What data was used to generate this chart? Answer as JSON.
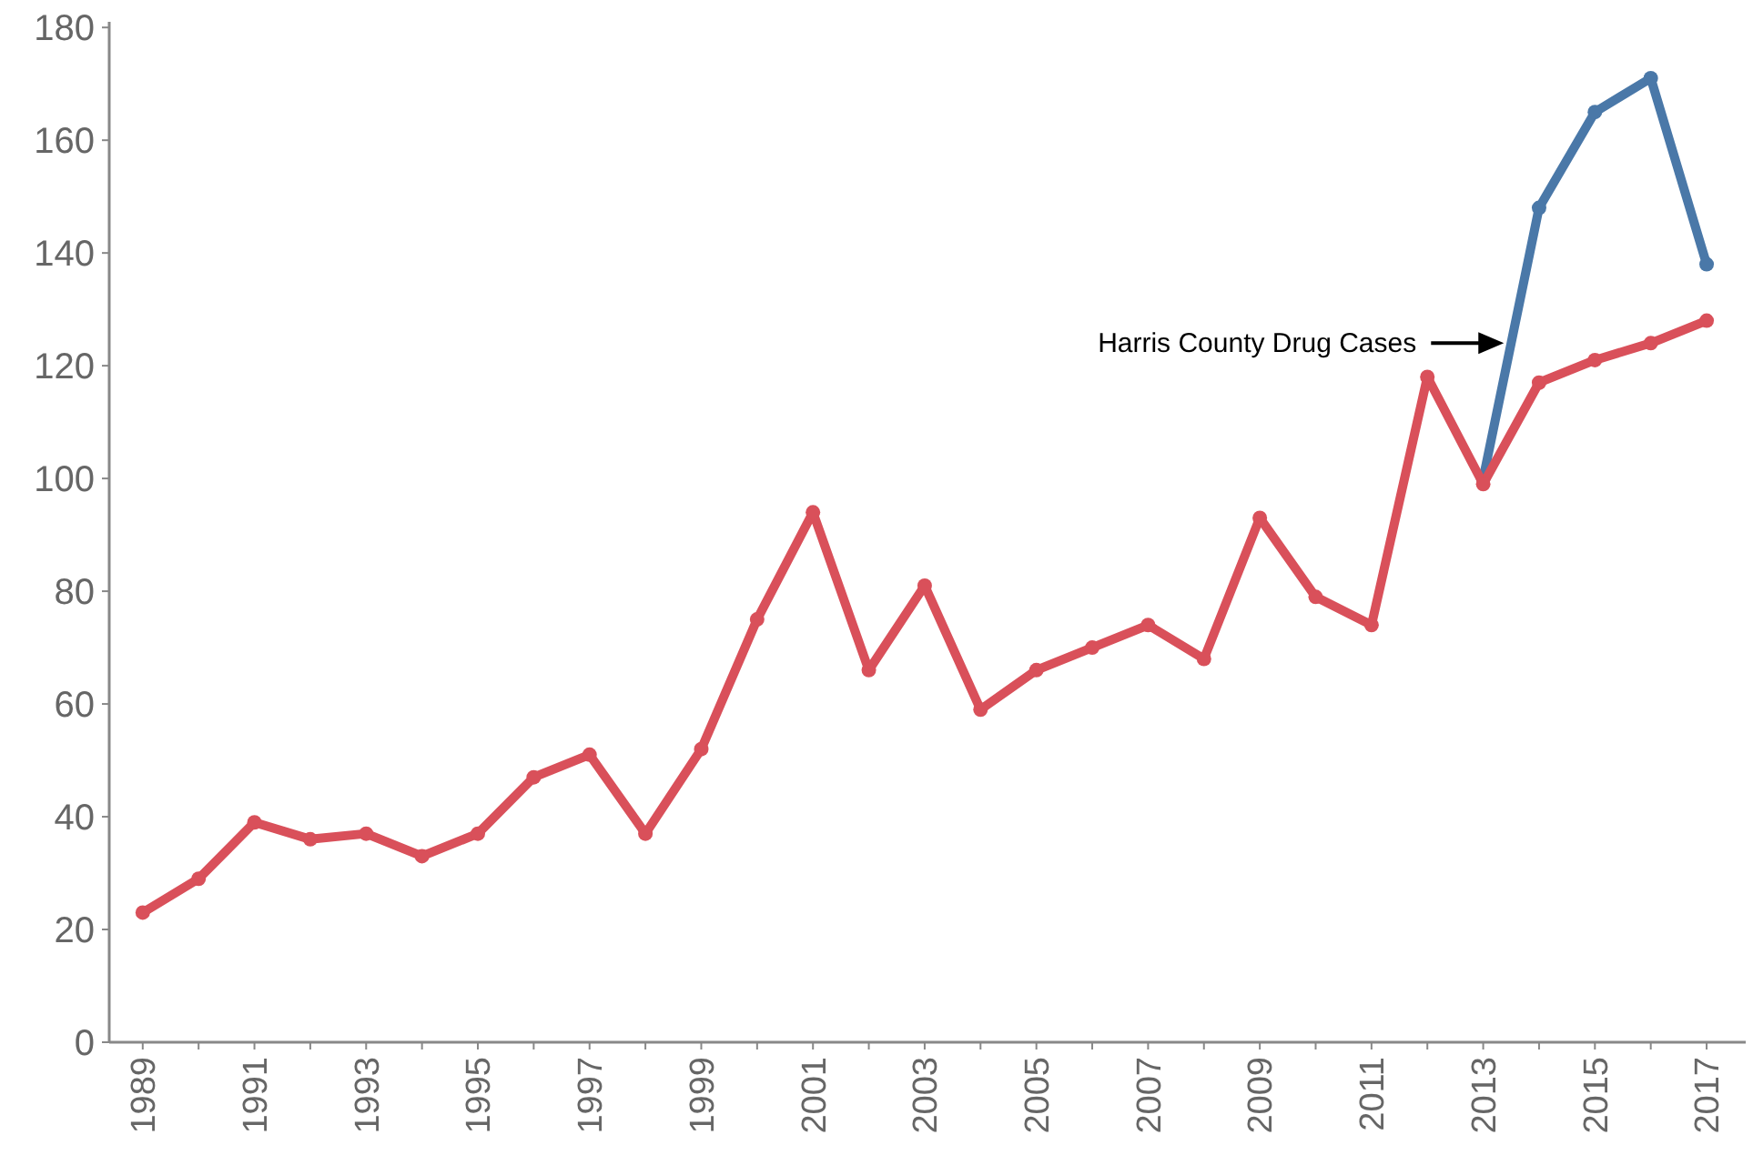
{
  "chart_data": {
    "type": "line",
    "x": [
      1989,
      1990,
      1991,
      1992,
      1993,
      1994,
      1995,
      1996,
      1997,
      1998,
      1999,
      2000,
      2001,
      2002,
      2003,
      2004,
      2005,
      2006,
      2007,
      2008,
      2009,
      2010,
      2011,
      2012,
      2013,
      2014,
      2015,
      2016,
      2017
    ],
    "series": [
      {
        "name": "Harris County Drug Cases",
        "color": "#4a78a8",
        "values": [
          null,
          null,
          null,
          null,
          null,
          null,
          null,
          null,
          null,
          null,
          null,
          null,
          null,
          null,
          null,
          null,
          null,
          null,
          null,
          null,
          null,
          null,
          null,
          null,
          100,
          148,
          165,
          171,
          138
        ]
      },
      {
        "color": "#d9505a",
        "values": [
          23,
          29,
          39,
          36,
          37,
          33,
          37,
          47,
          51,
          37,
          52,
          75,
          94,
          66,
          81,
          59,
          66,
          70,
          74,
          68,
          93,
          79,
          74,
          118,
          99,
          117,
          121,
          124,
          128
        ]
      }
    ],
    "xlim": [
      1988.4,
      2017.7
    ],
    "xticks": [
      1989,
      {
        "value": 1990,
        "label": null
      },
      1991,
      {
        "value": 1992,
        "label": null
      },
      1993,
      {
        "value": 1994,
        "label": null
      },
      1995,
      {
        "value": 1996,
        "label": null
      },
      1997,
      {
        "value": 1998,
        "label": null
      },
      1999,
      {
        "value": 2000,
        "label": null
      },
      2001,
      {
        "value": 2002,
        "label": null
      },
      2003,
      {
        "value": 2004,
        "label": null
      },
      2005,
      {
        "value": 2006,
        "label": null
      },
      2007,
      {
        "value": 2008,
        "label": null
      },
      2009,
      {
        "value": 2010,
        "label": null
      },
      2011,
      {
        "value": 2012,
        "label": null
      },
      2013,
      {
        "value": 2014,
        "label": null
      },
      2015,
      {
        "value": 2016,
        "label": null
      },
      2017
    ],
    "ylim": [
      0,
      181
    ],
    "yticks": [
      0,
      20,
      40,
      60,
      80,
      100,
      120,
      140,
      160,
      180
    ],
    "grid": false,
    "legend": false,
    "marker": "circle",
    "line_style": "solid"
  }
}
